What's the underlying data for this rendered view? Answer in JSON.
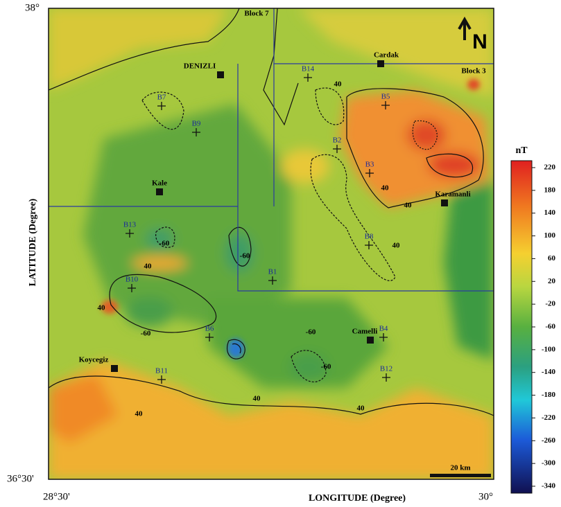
{
  "axes": {
    "x_label": "LONGITUDE (Degree)",
    "y_label": "LATITUDE (Degree)",
    "top_left": "38°",
    "bottom_left": "36°30'",
    "x_left": "28°30'",
    "x_right": "30°"
  },
  "towns": [
    "DENIZLI",
    "Cardak",
    "Karamanli",
    "Kale",
    "Camelli",
    "Koycegiz"
  ],
  "blocks": [
    "Block 7",
    "Block 3"
  ],
  "boreholes": [
    "B1",
    "B2",
    "B3",
    "B4",
    "B5",
    "B6",
    "B7",
    "B8",
    "B9",
    "B10",
    "B11",
    "B12",
    "B13",
    "B14"
  ],
  "contour_labels": [
    40,
    -60,
    -60,
    40,
    40,
    -60,
    -60,
    40,
    40,
    40,
    40,
    -60,
    40,
    40
  ],
  "north": "N",
  "scale_bar": "20 km",
  "colorbar": {
    "unit": "nT",
    "ticks": [
      220,
      180,
      140,
      100,
      60,
      20,
      -20,
      -60,
      -100,
      -140,
      -180,
      -220,
      -260,
      -300,
      -340
    ]
  }
}
